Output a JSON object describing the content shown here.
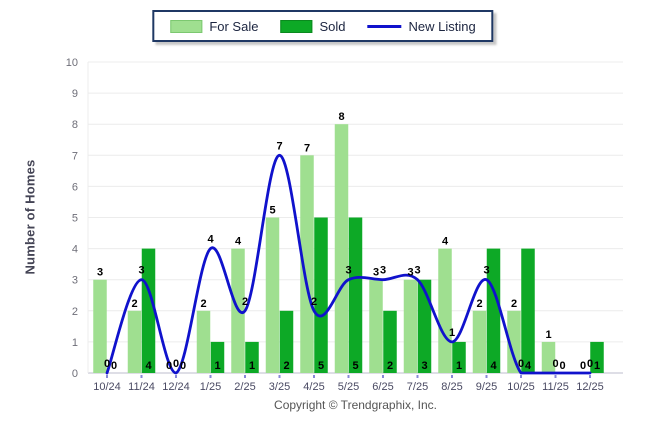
{
  "legend": {
    "for_sale_label": "For Sale",
    "sold_label": "Sold",
    "new_listing_label": "New Listing"
  },
  "y_axis": {
    "title": "Number of Homes"
  },
  "footer": {
    "copyright": "Copyright © Trendgraphix, Inc."
  },
  "colors": {
    "for_sale": "#9FDF90",
    "for_sale_border": "#7CC870",
    "sold": "#0DA926",
    "sold_border": "#0A8A1E",
    "new_listing": "#1012CC",
    "grid": "#ECECEC",
    "axis_line": "#C9C9D6",
    "y_tick_text": "#6E6E78",
    "x_tick_text": "#4A4A63",
    "value_label_text": "#000000",
    "x_tick_mark": "#8888D8"
  },
  "chart_data": {
    "type": "bar",
    "title": "",
    "xlabel": "",
    "ylabel": "Number of Homes",
    "ylim": [
      0,
      10
    ],
    "ystep": 1,
    "grid": true,
    "legend_position": "top-center",
    "categories": [
      "10/24",
      "11/24",
      "12/24",
      "1/25",
      "2/25",
      "3/25",
      "4/25",
      "5/25",
      "6/25",
      "7/25",
      "8/25",
      "9/25",
      "10/25",
      "11/25",
      "12/25"
    ],
    "series": [
      {
        "name": "For Sale",
        "type": "bar",
        "values": [
          3,
          2,
          0,
          2,
          4,
          5,
          7,
          8,
          3,
          3,
          4,
          2,
          2,
          1,
          0
        ]
      },
      {
        "name": "Sold",
        "type": "bar",
        "values": [
          0,
          4,
          0,
          1,
          1,
          2,
          5,
          5,
          2,
          3,
          1,
          4,
          4,
          0,
          1
        ]
      },
      {
        "name": "New Listing",
        "type": "line",
        "values": [
          0,
          3,
          0,
          4,
          2,
          7,
          2,
          3,
          3,
          3,
          1,
          3,
          0,
          0,
          0
        ]
      }
    ]
  }
}
